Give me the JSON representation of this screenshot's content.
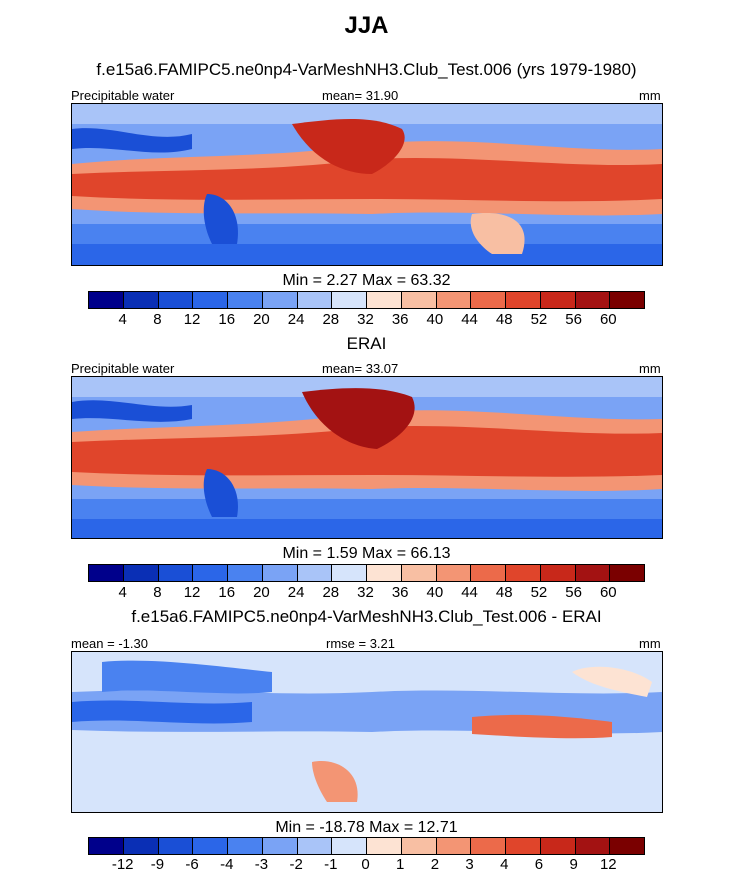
{
  "title": "JJA",
  "panels": [
    {
      "title": "f.e15a6.FAMIPC5.ne0np4-VarMeshNH3.Club_Test.006 (yrs 1979-1980)",
      "left_label": "Precipitable water",
      "center_label": "mean=  31.90",
      "units": "mm",
      "minmax": "Min =   2.27 Max =  63.32",
      "ticks": [
        "4",
        "8",
        "12",
        "16",
        "20",
        "24",
        "28",
        "32",
        "36",
        "40",
        "44",
        "48",
        "52",
        "56",
        "60"
      ]
    },
    {
      "title": "ERAI",
      "left_label": "Precipitable water",
      "center_label": "mean=  33.07",
      "units": "mm",
      "minmax": "Min =   1.59 Max =  66.13",
      "ticks": [
        "4",
        "8",
        "12",
        "16",
        "20",
        "24",
        "28",
        "32",
        "36",
        "40",
        "44",
        "48",
        "52",
        "56",
        "60"
      ]
    },
    {
      "title": "f.e15a6.FAMIPC5.ne0np4-VarMeshNH3.Club_Test.006 - ERAI",
      "left_label": "mean =  -1.30",
      "center_label": "rmse =   3.21",
      "units": "mm",
      "minmax": "Min = -18.78 Max =  12.71",
      "ticks": [
        "-12",
        "-9",
        "-6",
        "-4",
        "-3",
        "-2",
        "-1",
        "0",
        "1",
        "2",
        "3",
        "4",
        "6",
        "9",
        "12"
      ]
    }
  ],
  "colorbar": [
    "#00008b",
    "#0a2fb5",
    "#1a4fd6",
    "#2b66e8",
    "#4a82f0",
    "#7aa3f5",
    "#a9c4f8",
    "#d6e4fb",
    "#fde3d3",
    "#f8bfa3",
    "#f39574",
    "#ec6a4a",
    "#e0452b",
    "#c8281a",
    "#a31212",
    "#7a0000"
  ],
  "layers": {
    "panel_1": "model-water-field",
    "panel_2": "erai-water-field",
    "panel_3": "difference-field",
    "coast": "coastline-lines"
  }
}
